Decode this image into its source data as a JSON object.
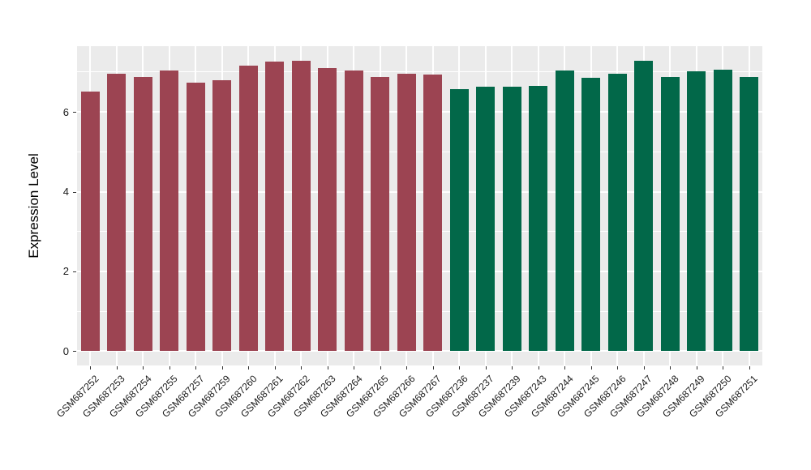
{
  "chart_data": {
    "type": "bar",
    "title": "",
    "xlabel": "",
    "ylabel": "Expression Level",
    "y_major_ticks": [
      0,
      2,
      4,
      6
    ],
    "y_minor_ticks": [
      1,
      3,
      5,
      7
    ],
    "ylim": [
      -0.36,
      7.65
    ],
    "legend": "none",
    "panel_bg": "#EBEBEB",
    "grid_color": "#FFFFFF",
    "axis_text_color": "#1A1A1A",
    "tick_mark_color": "#333333",
    "bar_width_fraction": 0.72,
    "groups": [
      {
        "name": "group-red",
        "color": "#9C4452",
        "bars": [
          {
            "label": "GSM687252",
            "value": 6.52
          },
          {
            "label": "GSM687253",
            "value": 6.95
          },
          {
            "label": "GSM687254",
            "value": 6.87
          },
          {
            "label": "GSM687255",
            "value": 7.03
          },
          {
            "label": "GSM687257",
            "value": 6.74
          },
          {
            "label": "GSM687259",
            "value": 6.79
          },
          {
            "label": "GSM687260",
            "value": 7.16
          },
          {
            "label": "GSM687261",
            "value": 7.26
          },
          {
            "label": "GSM687262",
            "value": 7.29
          },
          {
            "label": "GSM687263",
            "value": 7.1
          },
          {
            "label": "GSM687264",
            "value": 7.04
          },
          {
            "label": "GSM687265",
            "value": 6.87
          },
          {
            "label": "GSM687266",
            "value": 6.96
          },
          {
            "label": "GSM687267",
            "value": 6.93
          }
        ]
      },
      {
        "name": "group-green",
        "color": "#026849",
        "bars": [
          {
            "label": "GSM687236",
            "value": 6.57
          },
          {
            "label": "GSM687237",
            "value": 6.64
          },
          {
            "label": "GSM687239",
            "value": 6.64
          },
          {
            "label": "GSM687243",
            "value": 6.66
          },
          {
            "label": "GSM687244",
            "value": 7.03
          },
          {
            "label": "GSM687245",
            "value": 6.86
          },
          {
            "label": "GSM687246",
            "value": 6.96
          },
          {
            "label": "GSM687247",
            "value": 7.29
          },
          {
            "label": "GSM687248",
            "value": 6.87
          },
          {
            "label": "GSM687249",
            "value": 7.02
          },
          {
            "label": "GSM687250",
            "value": 7.07
          },
          {
            "label": "GSM687251",
            "value": 6.88
          }
        ]
      }
    ]
  }
}
